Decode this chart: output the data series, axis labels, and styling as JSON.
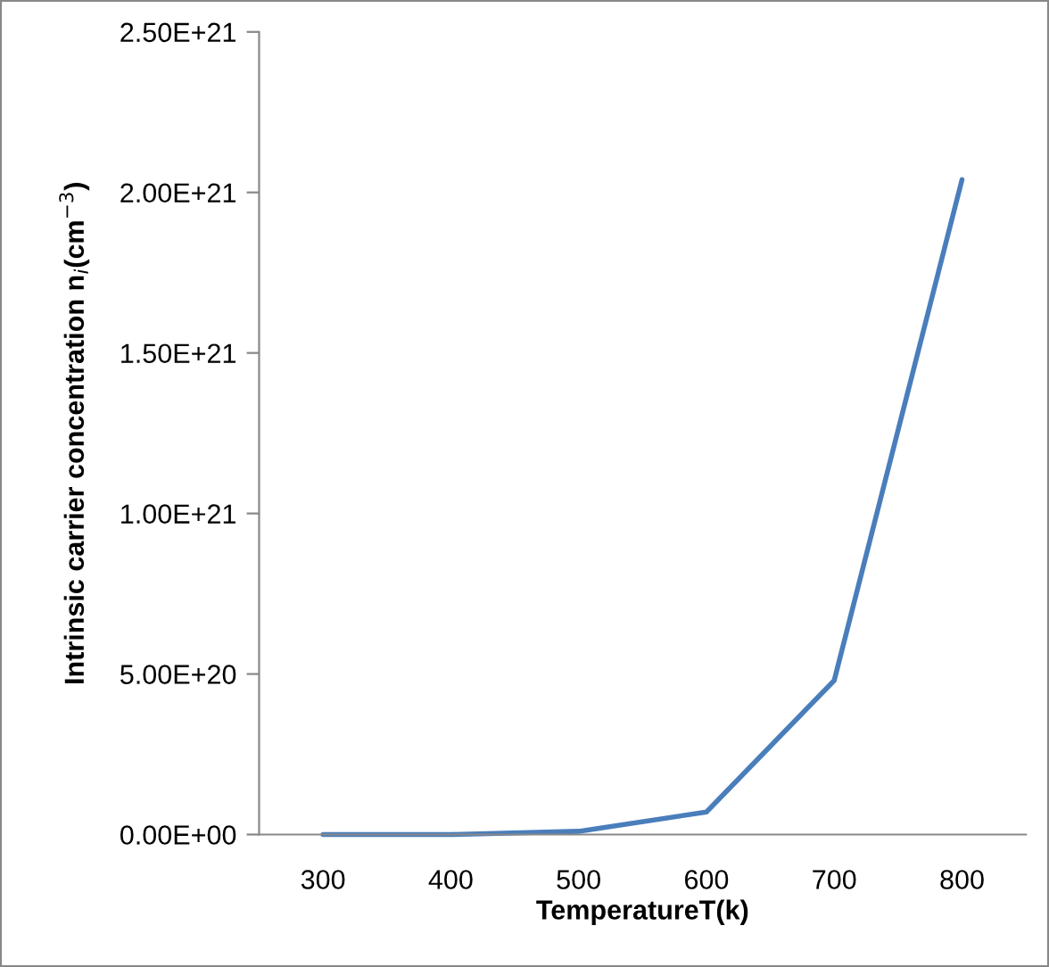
{
  "chart_data": {
    "type": "line",
    "xlabel": "TemperatureT(k)",
    "ylabel": "Intrinsic carrier concentration n$_{i}$(cm$^{−3}$)",
    "categories": [
      "300",
      "400",
      "500",
      "600",
      "700",
      "800"
    ],
    "series": [
      {
        "color": "#4a7ebb",
        "values": [
          0,
          0,
          1e+19,
          7e+19,
          4.8e+20,
          2.04e+21
        ]
      }
    ],
    "ylim": [
      0,
      2.5e+21
    ],
    "yticks": [
      {
        "value": 0,
        "label": "0.00E+00"
      },
      {
        "value": 5e+20,
        "label": "5.00E+20"
      },
      {
        "value": 1e+21,
        "label": "1.00E+21"
      },
      {
        "value": 1.5e+21,
        "label": "1.50E+21"
      },
      {
        "value": 2e+21,
        "label": "2.00E+21"
      },
      {
        "value": 2.5e+21,
        "label": "2.50E+21"
      }
    ]
  }
}
